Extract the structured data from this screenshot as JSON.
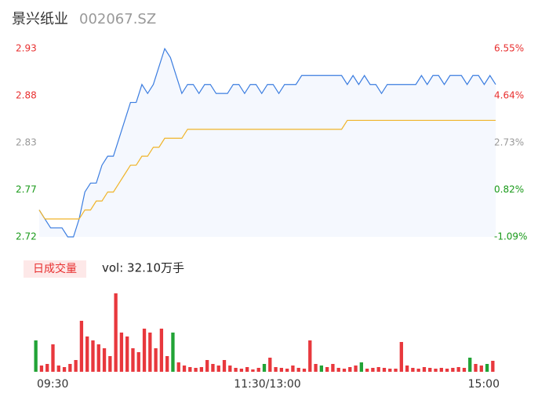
{
  "header": {
    "name": "景兴纸业",
    "code": "002067.SZ"
  },
  "volume_tab": {
    "label": "日成交量",
    "vol_text": "vol: 32.10万手"
  },
  "chart_data": [
    {
      "type": "line",
      "x": [
        0,
        3,
        6,
        9,
        12,
        15,
        18,
        21,
        24,
        27,
        30,
        33,
        36,
        39,
        42,
        45,
        48,
        51,
        54,
        57,
        60,
        63,
        66,
        69,
        72,
        75,
        78,
        81,
        84,
        87,
        90,
        93,
        96,
        99,
        102,
        105,
        108,
        111,
        114,
        117,
        120,
        123,
        126,
        129,
        132,
        135,
        138,
        141,
        144,
        147,
        150,
        153,
        156,
        159,
        162,
        165,
        168,
        171,
        174,
        177,
        180,
        183,
        186,
        189,
        192,
        195,
        198,
        201,
        204,
        207,
        210,
        213,
        216,
        219,
        222,
        225,
        228,
        231,
        234,
        237,
        240
      ],
      "xlim": [
        0,
        240
      ],
      "xticks": [
        {
          "value": 0,
          "label": "09:30"
        },
        {
          "value": 120,
          "label": "11:30/13:00"
        },
        {
          "value": 240,
          "label": "15:00"
        }
      ],
      "ylim": [
        2.72,
        2.93
      ],
      "yticks": [
        {
          "value": 2.93,
          "label": "2.93"
        },
        {
          "value": 2.8775,
          "label": "2.88"
        },
        {
          "value": 2.825,
          "label": "2.83"
        },
        {
          "value": 2.7725,
          "label": "2.77"
        },
        {
          "value": 2.72,
          "label": "2.72"
        }
      ],
      "ytick_colors": [
        "#e83030",
        "#e83030",
        "#999999",
        "#1a9a1a",
        "#1a9a1a"
      ],
      "y2lim": [
        -1.09,
        6.55
      ],
      "y2ticks": [
        {
          "value": 6.55,
          "label": "6.55%"
        },
        {
          "value": 4.64,
          "label": "4.64%"
        },
        {
          "value": 2.73,
          "label": "2.73%"
        },
        {
          "value": 0.82,
          "label": "0.82%"
        },
        {
          "value": -1.09,
          "label": "-1.09%"
        }
      ],
      "fill": "#f5f8fe",
      "series": [
        {
          "color": "#3b7de0",
          "values": [
            2.75,
            2.74,
            2.73,
            2.73,
            2.73,
            2.72,
            2.72,
            2.74,
            2.77,
            2.78,
            2.78,
            2.8,
            2.81,
            2.81,
            2.83,
            2.85,
            2.87,
            2.87,
            2.89,
            2.88,
            2.89,
            2.91,
            2.93,
            2.92,
            2.9,
            2.88,
            2.89,
            2.89,
            2.88,
            2.89,
            2.89,
            2.88,
            2.88,
            2.88,
            2.89,
            2.89,
            2.88,
            2.89,
            2.89,
            2.88,
            2.89,
            2.89,
            2.88,
            2.89,
            2.89,
            2.89,
            2.9,
            2.9,
            2.9,
            2.9,
            2.9,
            2.9,
            2.9,
            2.9,
            2.89,
            2.9,
            2.89,
            2.9,
            2.89,
            2.89,
            2.88,
            2.89,
            2.89,
            2.89,
            2.89,
            2.89,
            2.89,
            2.9,
            2.89,
            2.9,
            2.9,
            2.89,
            2.9,
            2.9,
            2.9,
            2.89,
            2.9,
            2.9,
            2.89,
            2.9,
            2.89
          ]
        },
        {
          "color": "#f0b429",
          "values": [
            2.75,
            2.74,
            2.74,
            2.74,
            2.74,
            2.74,
            2.74,
            2.74,
            2.75,
            2.75,
            2.76,
            2.76,
            2.77,
            2.77,
            2.78,
            2.79,
            2.8,
            2.8,
            2.81,
            2.81,
            2.82,
            2.82,
            2.83,
            2.83,
            2.83,
            2.83,
            2.84,
            2.84,
            2.84,
            2.84,
            2.84,
            2.84,
            2.84,
            2.84,
            2.84,
            2.84,
            2.84,
            2.84,
            2.84,
            2.84,
            2.84,
            2.84,
            2.84,
            2.84,
            2.84,
            2.84,
            2.84,
            2.84,
            2.84,
            2.84,
            2.84,
            2.84,
            2.84,
            2.84,
            2.85,
            2.85,
            2.85,
            2.85,
            2.85,
            2.85,
            2.85,
            2.85,
            2.85,
            2.85,
            2.85,
            2.85,
            2.85,
            2.85,
            2.85,
            2.85,
            2.85,
            2.85,
            2.85,
            2.85,
            2.85,
            2.85,
            2.85,
            2.85,
            2.85,
            2.85,
            2.85
          ]
        }
      ]
    },
    {
      "type": "bar",
      "ylim": [
        0,
        100
      ],
      "values": [
        40,
        8,
        10,
        35,
        8,
        6,
        10,
        15,
        65,
        45,
        40,
        35,
        30,
        20,
        100,
        50,
        45,
        30,
        25,
        55,
        50,
        30,
        55,
        20,
        50,
        12,
        8,
        6,
        5,
        6,
        15,
        10,
        8,
        15,
        8,
        5,
        4,
        6,
        3,
        5,
        10,
        18,
        6,
        5,
        4,
        8,
        5,
        4,
        40,
        10,
        8,
        6,
        10,
        5,
        4,
        6,
        8,
        12,
        4,
        5,
        6,
        5,
        4,
        4,
        38,
        8,
        5,
        4,
        6,
        5,
        4,
        5,
        4,
        5,
        6,
        5,
        18,
        10,
        8,
        10,
        14
      ],
      "colors": [
        "#21a336",
        "#e8383d",
        "#e8383d",
        "#e8383d",
        "#e8383d",
        "#e8383d",
        "#e8383d",
        "#e8383d",
        "#e8383d",
        "#e8383d",
        "#e8383d",
        "#e8383d",
        "#e8383d",
        "#e8383d",
        "#e8383d",
        "#e8383d",
        "#e8383d",
        "#e8383d",
        "#e8383d",
        "#e8383d",
        "#e8383d",
        "#e8383d",
        "#e8383d",
        "#e8383d",
        "#21a336",
        "#e8383d",
        "#e8383d",
        "#e8383d",
        "#e8383d",
        "#e8383d",
        "#e8383d",
        "#e8383d",
        "#e8383d",
        "#e8383d",
        "#e8383d",
        "#e8383d",
        "#e8383d",
        "#e8383d",
        "#e8383d",
        "#e8383d",
        "#21a336",
        "#e8383d",
        "#e8383d",
        "#e8383d",
        "#e8383d",
        "#e8383d",
        "#e8383d",
        "#e8383d",
        "#e8383d",
        "#e8383d",
        "#21a336",
        "#e8383d",
        "#e8383d",
        "#e8383d",
        "#e8383d",
        "#e8383d",
        "#e8383d",
        "#21a336",
        "#e8383d",
        "#e8383d",
        "#e8383d",
        "#e8383d",
        "#e8383d",
        "#e8383d",
        "#e8383d",
        "#e8383d",
        "#e8383d",
        "#e8383d",
        "#e8383d",
        "#e8383d",
        "#e8383d",
        "#e8383d",
        "#e8383d",
        "#e8383d",
        "#e8383d",
        "#e8383d",
        "#21a336",
        "#e8383d",
        "#e8383d",
        "#21a336",
        "#e8383d"
      ]
    }
  ]
}
